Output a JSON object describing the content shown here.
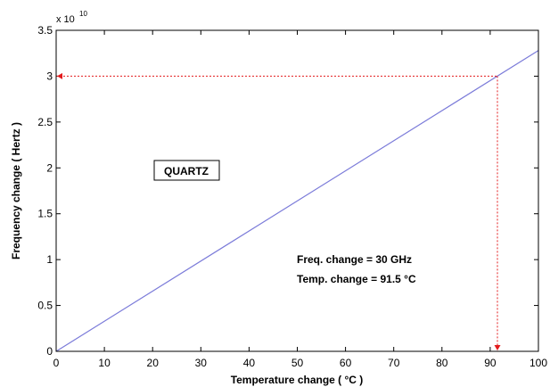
{
  "chart_data": {
    "type": "line",
    "title": "",
    "xlabel": "Temperature change ( °C )",
    "ylabel": "Frequency change ( Hertz )",
    "xlim": [
      0,
      100
    ],
    "ylim": [
      0,
      3.5
    ],
    "x_ticks": [
      "0",
      "10",
      "20",
      "30",
      "40",
      "50",
      "60",
      "70",
      "80",
      "90",
      "100"
    ],
    "y_ticks": [
      "0",
      "0.5",
      "1",
      "1.5",
      "2",
      "2.5",
      "3",
      "3.5"
    ],
    "y_multiplier_base": "x 10",
    "y_multiplier_exponent": "10",
    "grid": false,
    "series": [
      {
        "color": "#7b7bd9",
        "x": [
          0,
          100
        ],
        "y": [
          0,
          3.28
        ]
      }
    ],
    "reference_point": {
      "x": 91.5,
      "y": 3.0,
      "color": "#e31a1c"
    },
    "annotations": {
      "material_label": "QUARTZ",
      "freq_change": "Freq. change = 30 GHz",
      "temp_change": "Temp. change = 91.5 °C"
    }
  }
}
